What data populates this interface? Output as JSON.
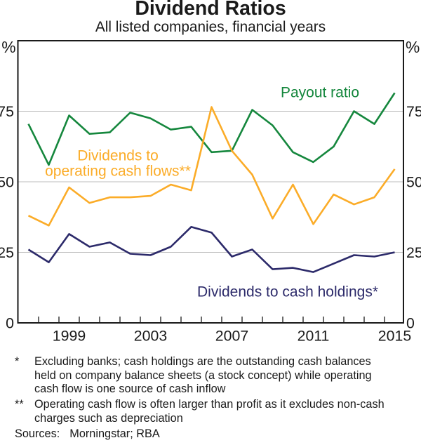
{
  "title": "Dividend Ratios",
  "subtitle": "All listed companies, financial years",
  "unit_label": "%",
  "chart_data": {
    "type": "line",
    "x": [
      1997,
      1998,
      1999,
      2000,
      2001,
      2002,
      2003,
      2004,
      2005,
      2006,
      2007,
      2008,
      2009,
      2010,
      2011,
      2012,
      2013,
      2014,
      2015
    ],
    "series": [
      {
        "name": "Payout ratio",
        "color": "#15873D",
        "values": [
          70.5,
          56,
          73.5,
          67,
          67.5,
          74.5,
          72.5,
          68.5,
          69.5,
          60.5,
          61,
          75.5,
          70,
          60.5,
          57,
          62.5,
          75,
          70.5,
          81.5
        ]
      },
      {
        "name": "Dividends to operating cash flows**",
        "color": "#FBAC28",
        "values": [
          38,
          34.5,
          48,
          42.5,
          44.5,
          44.5,
          45,
          49,
          47,
          76.5,
          61,
          52.5,
          37,
          49,
          35,
          45.5,
          42,
          44.5,
          54.5
        ]
      },
      {
        "name": "Dividends to cash holdings*",
        "color": "#2C2A6A",
        "values": [
          26,
          21.5,
          31.5,
          27,
          28.5,
          24.5,
          24,
          27,
          34,
          32,
          23.5,
          26,
          19,
          19.5,
          18,
          21,
          24,
          23.5,
          25
        ]
      }
    ],
    "ylim": [
      0,
      100
    ],
    "yticks": [
      0,
      25,
      50,
      75
    ],
    "xtick_labels": [
      "1999",
      "2003",
      "2007",
      "2011",
      "2015"
    ],
    "grid": "horizontal",
    "legend_annotations": [
      {
        "lines": [
          "Payout ratio"
        ],
        "color": "#15873D"
      },
      {
        "lines": [
          "Dividends to",
          "operating cash flows**"
        ],
        "color": "#FBAC28"
      },
      {
        "lines": [
          "Dividends to cash holdings*"
        ],
        "color": "#2C2A6A"
      }
    ]
  },
  "footnotes": [
    {
      "marker": "*",
      "lines": [
        "Excluding banks; cash holdings are the outstanding cash balances",
        "held on company balance sheets (a stock concept) while operating",
        "cash flow is one source of cash inflow"
      ]
    },
    {
      "marker": "**",
      "lines": [
        "Operating cash flow is often larger than profit as it excludes non-cash",
        "charges such as depreciation"
      ]
    }
  ],
  "sources_label": "Sources:",
  "sources": "Morningstar; RBA"
}
